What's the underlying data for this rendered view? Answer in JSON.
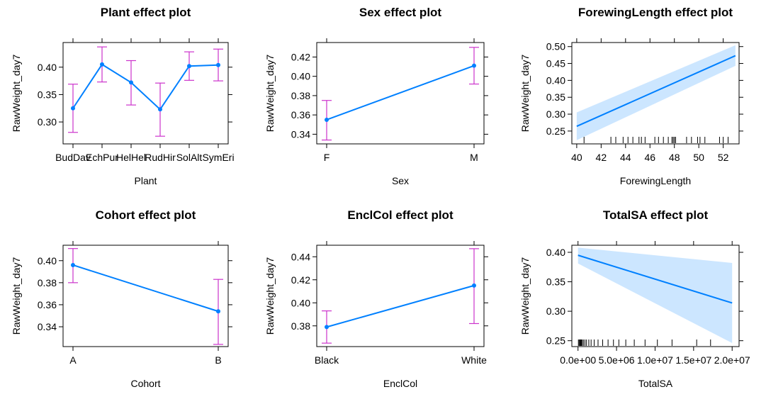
{
  "colors": {
    "line": "#0080FF",
    "errorbar": "#CC33CC",
    "band": "#CCE6FF",
    "axis": "#000000",
    "text": "#000000"
  },
  "chart_data": [
    {
      "type": "line",
      "subtype": "categorical-effect",
      "title": "Plant effect plot",
      "xlabel": "Plant",
      "ylabel": "RawWeight_day7",
      "categories": [
        "BudDav",
        "EchPur",
        "HelHel",
        "RudHir",
        "SolAlt",
        "SymEri"
      ],
      "values": [
        0.325,
        0.405,
        0.372,
        0.323,
        0.402,
        0.404
      ],
      "lower": [
        0.281,
        0.373,
        0.331,
        0.274,
        0.376,
        0.375
      ],
      "upper": [
        0.369,
        0.437,
        0.412,
        0.371,
        0.428,
        0.433
      ],
      "ylim": [
        0.26,
        0.445
      ],
      "yticks": [
        0.3,
        0.35,
        0.4
      ],
      "yticklabels": [
        "0.30",
        "0.35",
        "0.40"
      ]
    },
    {
      "type": "line",
      "subtype": "categorical-effect",
      "title": "Sex effect plot",
      "xlabel": "Sex",
      "ylabel": "RawWeight_day7",
      "categories": [
        "F",
        "M"
      ],
      "values": [
        0.355,
        0.411
      ],
      "lower": [
        0.334,
        0.392
      ],
      "upper": [
        0.375,
        0.43
      ],
      "ylim": [
        0.33,
        0.435
      ],
      "yticks": [
        0.34,
        0.36,
        0.38,
        0.4,
        0.42
      ],
      "yticklabels": [
        "0.34",
        "0.36",
        "0.38",
        "0.40",
        "0.42"
      ]
    },
    {
      "type": "line",
      "subtype": "continuous-effect",
      "title": "ForewingLength effect plot",
      "xlabel": "ForewingLength",
      "ylabel": "RawWeight_day7",
      "x": [
        40,
        53
      ],
      "values": [
        0.264,
        0.473
      ],
      "lower": [
        0.223,
        0.443
      ],
      "upper": [
        0.305,
        0.504
      ],
      "xlim": [
        39.6,
        53.3
      ],
      "ylim": [
        0.212,
        0.512
      ],
      "xticks": [
        40,
        42,
        44,
        46,
        48,
        50,
        52
      ],
      "xticklabels": [
        "40",
        "42",
        "44",
        "46",
        "48",
        "50",
        "52"
      ],
      "yticks": [
        0.25,
        0.3,
        0.35,
        0.4,
        0.45,
        0.5
      ],
      "yticklabels": [
        "0.25",
        "0.30",
        "0.35",
        "0.40",
        "0.45",
        "0.50"
      ],
      "rug": [
        40.6,
        42.8,
        43.2,
        43.8,
        44.2,
        44.6,
        45.1,
        45.3,
        45.6,
        46.4,
        46.7,
        47.1,
        47.5,
        47.8,
        47.9,
        48.0,
        48.1,
        49.0,
        49.4,
        49.9,
        50.1,
        50.5,
        51.7,
        52.0,
        52.4
      ]
    },
    {
      "type": "line",
      "subtype": "categorical-effect",
      "title": "Cohort effect plot",
      "xlabel": "Cohort",
      "ylabel": "RawWeight_day7",
      "categories": [
        "A",
        "B"
      ],
      "values": [
        0.396,
        0.354
      ],
      "lower": [
        0.38,
        0.324
      ],
      "upper": [
        0.411,
        0.383
      ],
      "ylim": [
        0.322,
        0.414
      ],
      "yticks": [
        0.34,
        0.36,
        0.38,
        0.4
      ],
      "yticklabels": [
        "0.34",
        "0.36",
        "0.38",
        "0.40"
      ]
    },
    {
      "type": "line",
      "subtype": "categorical-effect",
      "title": "EnclCol effect plot",
      "xlabel": "EnclCol",
      "ylabel": "RawWeight_day7",
      "categories": [
        "Black",
        "White"
      ],
      "values": [
        0.379,
        0.415
      ],
      "lower": [
        0.365,
        0.382
      ],
      "upper": [
        0.393,
        0.447
      ],
      "ylim": [
        0.362,
        0.45
      ],
      "yticks": [
        0.38,
        0.4,
        0.42,
        0.44
      ],
      "yticklabels": [
        "0.38",
        "0.40",
        "0.42",
        "0.44"
      ]
    },
    {
      "type": "line",
      "subtype": "continuous-effect",
      "title": "TotalSA effect plot",
      "xlabel": "TotalSA",
      "ylabel": "RawWeight_day7",
      "x": [
        0,
        20000000
      ],
      "values": [
        0.395,
        0.314
      ],
      "lower": [
        0.381,
        0.246
      ],
      "upper": [
        0.408,
        0.382
      ],
      "xlim": [
        -800000,
        20900000
      ],
      "ylim": [
        0.24,
        0.412
      ],
      "xticks": [
        0,
        5000000,
        10000000,
        15000000,
        20000000
      ],
      "xticklabels": [
        "0.0e+00",
        "5.0e+06",
        "1.0e+07",
        "1.5e+07",
        "2.0e+07"
      ],
      "yticks": [
        0.25,
        0.3,
        0.35,
        0.4
      ],
      "yticklabels": [
        "0.25",
        "0.30",
        "0.35",
        "0.40"
      ],
      "rug": [
        50000,
        150000,
        250000,
        350000,
        450000,
        550000,
        700000,
        900000,
        1100000,
        1400000,
        1700000,
        2100000,
        2600000,
        3200000,
        3900000,
        4600000,
        5300000,
        6200000,
        7300000,
        8700000,
        10300000,
        12200000,
        15400000,
        17200000
      ]
    }
  ]
}
